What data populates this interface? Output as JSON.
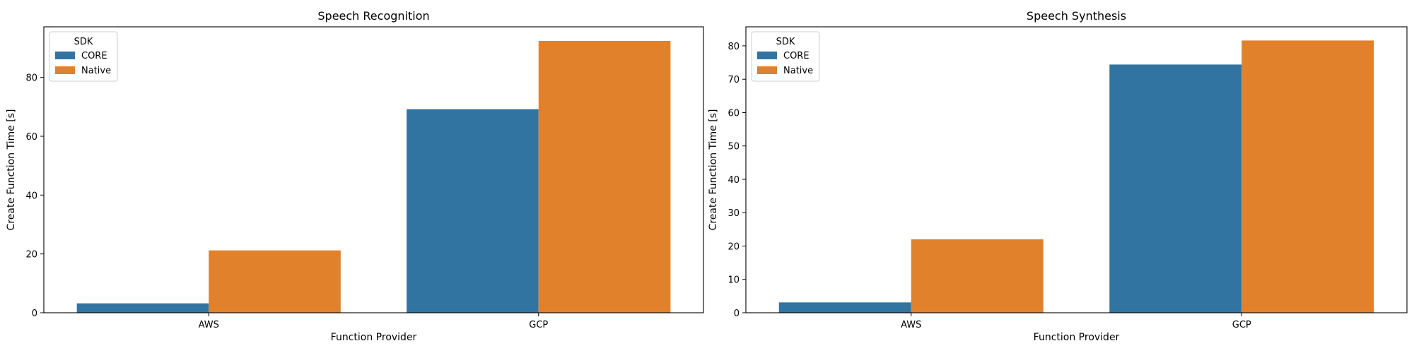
{
  "chart_data": [
    {
      "type": "bar",
      "title": "Speech Recognition",
      "xlabel": "Function Provider",
      "ylabel": "Create Function Time [s]",
      "categories": [
        "AWS",
        "GCP"
      ],
      "series": [
        {
          "name": "CORE",
          "values": [
            3.2,
            69.2
          ]
        },
        {
          "name": "Native",
          "values": [
            21.2,
            92.4
          ]
        }
      ],
      "ylim": [
        0,
        97.2
      ],
      "yticks": [
        0,
        20,
        40,
        60,
        80
      ],
      "legend": {
        "title": "SDK",
        "position": "top-left"
      },
      "grid": false
    },
    {
      "type": "bar",
      "title": "Speech Synthesis",
      "xlabel": "Function Provider",
      "ylabel": "Create Function Time [s]",
      "categories": [
        "AWS",
        "GCP"
      ],
      "series": [
        {
          "name": "CORE",
          "values": [
            3.1,
            74.4
          ]
        },
        {
          "name": "Native",
          "values": [
            22.0,
            81.6
          ]
        }
      ],
      "ylim": [
        0,
        85.7
      ],
      "yticks": [
        0,
        10,
        20,
        30,
        40,
        50,
        60,
        70,
        80
      ],
      "legend": {
        "title": "SDK",
        "position": "top-left"
      },
      "grid": false
    }
  ],
  "colors": {
    "CORE": "#3274a1",
    "Native": "#e1812c"
  }
}
